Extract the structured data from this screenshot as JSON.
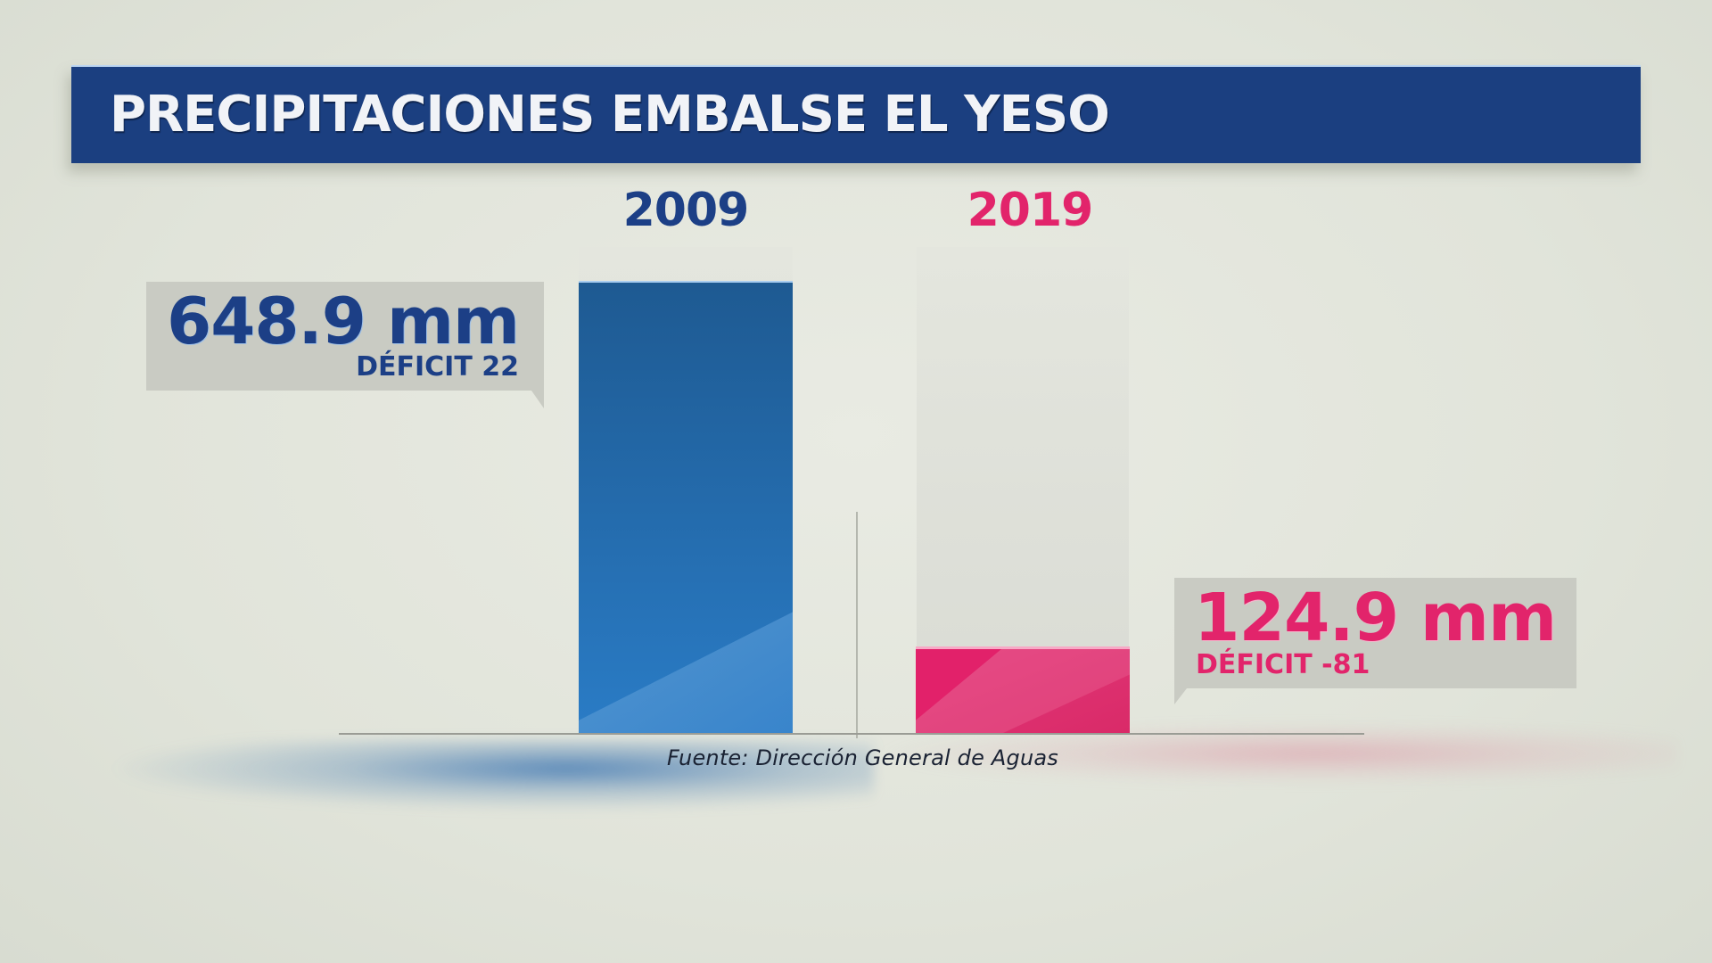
{
  "header": {
    "title": "PRECIPITACIONES EMBALSE EL YESO"
  },
  "source": "Fuente: Dirección General de Aguas",
  "colors": {
    "header_bg": "#1b3f80",
    "blue_text": "#1c3f86",
    "pink_text": "#e8256b",
    "blue_bar_top": "#1e5a92",
    "blue_bar_bottom": "#2c7cc4",
    "pink_bar": "#e2246b"
  },
  "chart_data": {
    "type": "bar",
    "title": "PRECIPITACIONES EMBALSE EL YESO",
    "xlabel": "",
    "ylabel": "",
    "unit": "mm",
    "categories": [
      "2009",
      "2019"
    ],
    "values": [
      648.9,
      124.9
    ],
    "value_labels": [
      "648.9 mm",
      "124.9 mm"
    ],
    "deficit_labels": [
      "DÉFICIT 22",
      "DÉFICIT -81"
    ],
    "deficit": [
      22,
      -81
    ],
    "ylim": [
      0,
      648.9
    ],
    "grid": false,
    "legend": "none",
    "source": "Fuente: Dirección General de Aguas"
  }
}
